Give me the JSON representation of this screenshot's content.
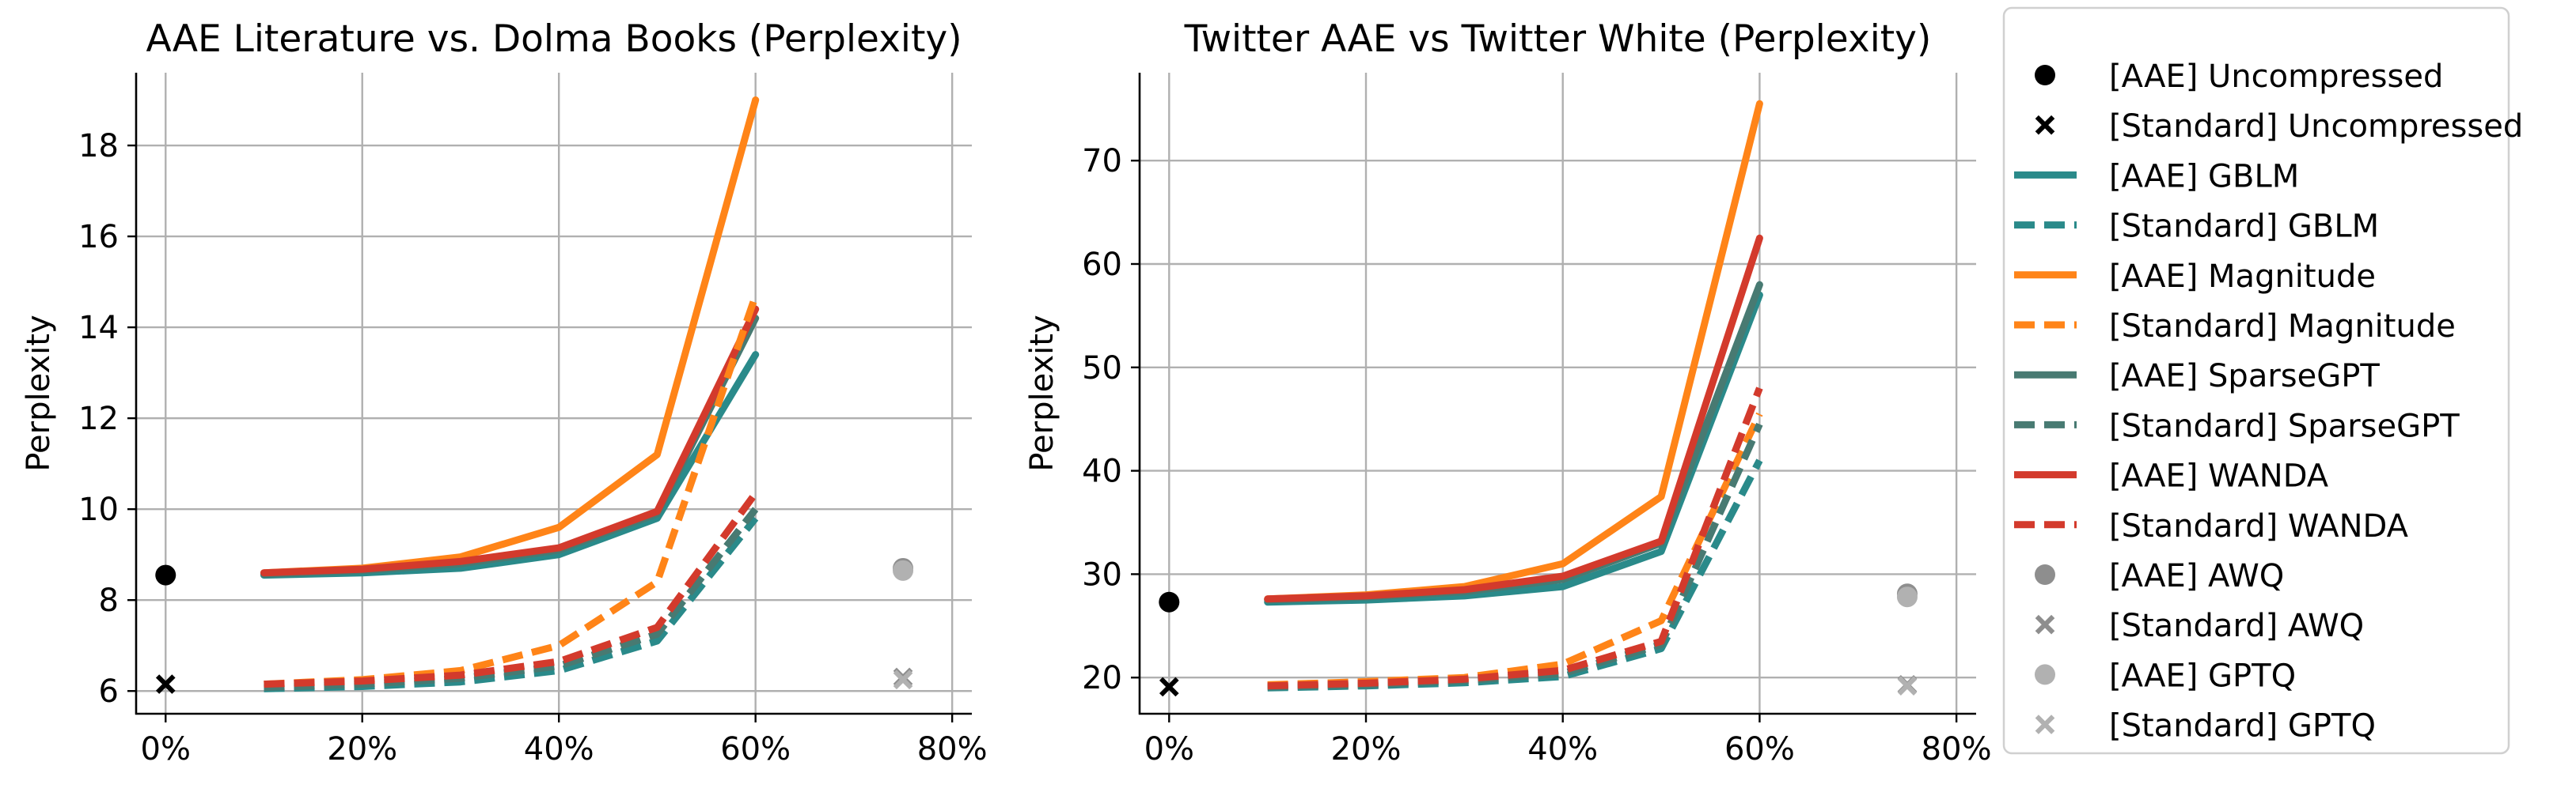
{
  "colors": {
    "gblm": "#2a8a8a",
    "magnitude": "#ff8418",
    "sparsegpt": "#487a72",
    "wanda": "#d33a2c",
    "awq": "#8e8e8e",
    "gptq": "#b1b1b1",
    "uncompressed": "#000000",
    "grid": "#b0b0b0"
  },
  "legend": {
    "entries": [
      {
        "label": "[AAE] Uncompressed",
        "kind": "dot",
        "color": "uncompressed"
      },
      {
        "label": "[Standard] Uncompressed",
        "kind": "x",
        "color": "uncompressed"
      },
      {
        "label": "[AAE] GBLM",
        "kind": "solid",
        "color": "gblm"
      },
      {
        "label": "[Standard] GBLM",
        "kind": "dashed",
        "color": "gblm"
      },
      {
        "label": "[AAE] Magnitude",
        "kind": "solid",
        "color": "magnitude"
      },
      {
        "label": "[Standard] Magnitude",
        "kind": "dashed",
        "color": "magnitude"
      },
      {
        "label": "[AAE] SparseGPT",
        "kind": "solid",
        "color": "sparsegpt"
      },
      {
        "label": "[Standard] SparseGPT",
        "kind": "dashed",
        "color": "sparsegpt"
      },
      {
        "label": "[AAE] WANDA",
        "kind": "solid",
        "color": "wanda"
      },
      {
        "label": "[Standard] WANDA",
        "kind": "dashed",
        "color": "wanda"
      },
      {
        "label": "[AAE] AWQ",
        "kind": "dot",
        "color": "awq"
      },
      {
        "label": "[Standard] AWQ",
        "kind": "x",
        "color": "awq"
      },
      {
        "label": "[AAE] GPTQ",
        "kind": "dot",
        "color": "gptq"
      },
      {
        "label": "[Standard] GPTQ",
        "kind": "x",
        "color": "gptq"
      }
    ]
  },
  "chart_data": [
    {
      "type": "line",
      "title": "AAE Literature vs. Dolma Books (Perplexity)",
      "xlabel": "",
      "ylabel": "Perplexity",
      "xlim": [
        -3,
        82
      ],
      "ylim": [
        5.5,
        19.6
      ],
      "xticks": [
        0,
        20,
        40,
        60,
        80
      ],
      "xtick_labels": [
        "0%",
        "20%",
        "40%",
        "60%",
        "80%"
      ],
      "yticks": [
        6,
        8,
        10,
        12,
        14,
        16,
        18
      ],
      "grid": true,
      "x": [
        10,
        20,
        30,
        40,
        50,
        60
      ],
      "series": [
        {
          "name": "[AAE] Magnitude",
          "color": "magnitude",
          "dash": false,
          "values": [
            8.6,
            8.7,
            8.95,
            9.6,
            11.2,
            19.0
          ]
        },
        {
          "name": "[AAE] GBLM",
          "color": "gblm",
          "dash": false,
          "values": [
            8.55,
            8.6,
            8.7,
            9.0,
            9.8,
            13.4
          ]
        },
        {
          "name": "[AAE] SparseGPT",
          "color": "sparsegpt",
          "dash": false,
          "values": [
            8.57,
            8.65,
            8.8,
            9.1,
            9.9,
            14.2
          ]
        },
        {
          "name": "[AAE] WANDA",
          "color": "wanda",
          "dash": false,
          "values": [
            8.6,
            8.68,
            8.85,
            9.15,
            9.95,
            14.4
          ]
        },
        {
          "name": "[Standard] Magnitude",
          "color": "magnitude",
          "dash": true,
          "values": [
            6.15,
            6.25,
            6.45,
            7.0,
            8.4,
            14.7
          ]
        },
        {
          "name": "[Standard] GBLM",
          "color": "gblm",
          "dash": true,
          "values": [
            6.05,
            6.1,
            6.2,
            6.45,
            7.1,
            9.8
          ]
        },
        {
          "name": "[Standard] SparseGPT",
          "color": "sparsegpt",
          "dash": true,
          "values": [
            6.08,
            6.15,
            6.28,
            6.55,
            7.25,
            10.0
          ]
        },
        {
          "name": "[Standard] WANDA",
          "color": "wanda",
          "dash": true,
          "values": [
            6.15,
            6.22,
            6.35,
            6.65,
            7.4,
            10.35
          ]
        }
      ],
      "points": [
        {
          "name": "[AAE] Uncompressed",
          "kind": "dot",
          "color": "uncompressed",
          "x": 0,
          "y": 8.55
        },
        {
          "name": "[Standard] Uncompressed",
          "kind": "x",
          "color": "uncompressed",
          "x": 0,
          "y": 6.15
        },
        {
          "name": "[AAE] AWQ",
          "kind": "dot",
          "color": "awq",
          "x": 75,
          "y": 8.7
        },
        {
          "name": "[AAE] GPTQ",
          "kind": "dot",
          "color": "gptq",
          "x": 75,
          "y": 8.65
        },
        {
          "name": "[Standard] AWQ",
          "kind": "x",
          "color": "awq",
          "x": 75,
          "y": 6.3
        },
        {
          "name": "[Standard] GPTQ",
          "kind": "x",
          "color": "gptq",
          "x": 75,
          "y": 6.25
        }
      ]
    },
    {
      "type": "line",
      "title": "Twitter AAE vs Twitter White (Perplexity)",
      "xlabel": "",
      "ylabel": "Perplexity",
      "xlim": [
        -3,
        82
      ],
      "ylim": [
        16.5,
        78.5
      ],
      "xticks": [
        0,
        20,
        40,
        60,
        80
      ],
      "xtick_labels": [
        "0%",
        "20%",
        "40%",
        "60%",
        "80%"
      ],
      "yticks": [
        20,
        30,
        40,
        50,
        60,
        70
      ],
      "grid": true,
      "x": [
        10,
        20,
        30,
        40,
        50,
        60
      ],
      "series": [
        {
          "name": "[AAE] Magnitude",
          "color": "magnitude",
          "dash": false,
          "values": [
            27.6,
            28.0,
            28.8,
            31.0,
            37.5,
            75.5
          ]
        },
        {
          "name": "[AAE] GBLM",
          "color": "gblm",
          "dash": false,
          "values": [
            27.3,
            27.5,
            27.9,
            28.8,
            32.2,
            57.0
          ]
        },
        {
          "name": "[AAE] SparseGPT",
          "color": "sparsegpt",
          "dash": false,
          "values": [
            27.5,
            27.8,
            28.3,
            29.5,
            33.0,
            58.0
          ]
        },
        {
          "name": "[AAE] WANDA",
          "color": "wanda",
          "dash": false,
          "values": [
            27.6,
            27.9,
            28.5,
            29.8,
            33.2,
            62.5
          ]
        },
        {
          "name": "[Standard] Magnitude",
          "color": "magnitude",
          "dash": true,
          "values": [
            19.3,
            19.6,
            20.0,
            21.3,
            25.5,
            45.5
          ]
        },
        {
          "name": "[Standard] GBLM",
          "color": "gblm",
          "dash": true,
          "values": [
            19.0,
            19.2,
            19.5,
            20.1,
            22.8,
            41.0
          ]
        },
        {
          "name": "[Standard] SparseGPT",
          "color": "sparsegpt",
          "dash": true,
          "values": [
            19.1,
            19.3,
            19.7,
            20.4,
            23.2,
            44.5
          ]
        },
        {
          "name": "[Standard] WANDA",
          "color": "wanda",
          "dash": true,
          "values": [
            19.2,
            19.45,
            19.85,
            20.7,
            23.5,
            48.0
          ]
        }
      ],
      "points": [
        {
          "name": "[AAE] Uncompressed",
          "kind": "dot",
          "color": "uncompressed",
          "x": 0,
          "y": 27.3
        },
        {
          "name": "[Standard] Uncompressed",
          "kind": "x",
          "color": "uncompressed",
          "x": 0,
          "y": 19.1
        },
        {
          "name": "[AAE] AWQ",
          "kind": "dot",
          "color": "awq",
          "x": 75,
          "y": 28.1
        },
        {
          "name": "[AAE] GPTQ",
          "kind": "dot",
          "color": "gptq",
          "x": 75,
          "y": 27.8
        },
        {
          "name": "[Standard] AWQ",
          "kind": "x",
          "color": "awq",
          "x": 75,
          "y": 19.3
        },
        {
          "name": "[Standard] GPTQ",
          "kind": "x",
          "color": "gptq",
          "x": 75,
          "y": 19.2
        }
      ]
    }
  ]
}
